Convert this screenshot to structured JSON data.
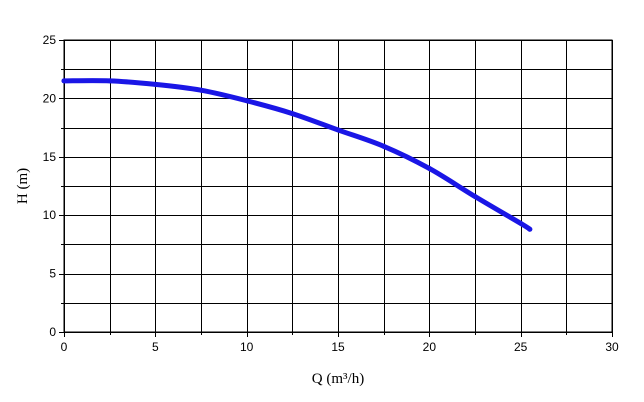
{
  "chart_data": {
    "type": "line",
    "title": "",
    "xlabel": "Q (m³/h)",
    "ylabel": "H (m)",
    "xlim": [
      0,
      30
    ],
    "ylim": [
      0,
      25
    ],
    "x_ticks": [
      0,
      5,
      10,
      15,
      20,
      25,
      30
    ],
    "y_ticks": [
      0,
      5,
      10,
      15,
      20,
      25
    ],
    "x_minor_step": 2.5,
    "y_minor_step": 2.5,
    "grid": true,
    "colors": {
      "series": "#1a16e6",
      "grid": "#000000",
      "axis": "#000000"
    },
    "series": [
      {
        "x": [
          0,
          2.5,
          5,
          7.5,
          10,
          12.5,
          15,
          17.5,
          20,
          22.5,
          25,
          25.5
        ],
        "y": [
          21.5,
          21.5,
          21.2,
          20.7,
          19.8,
          18.7,
          17.3,
          15.9,
          14.0,
          11.6,
          9.3,
          8.8
        ]
      }
    ]
  }
}
